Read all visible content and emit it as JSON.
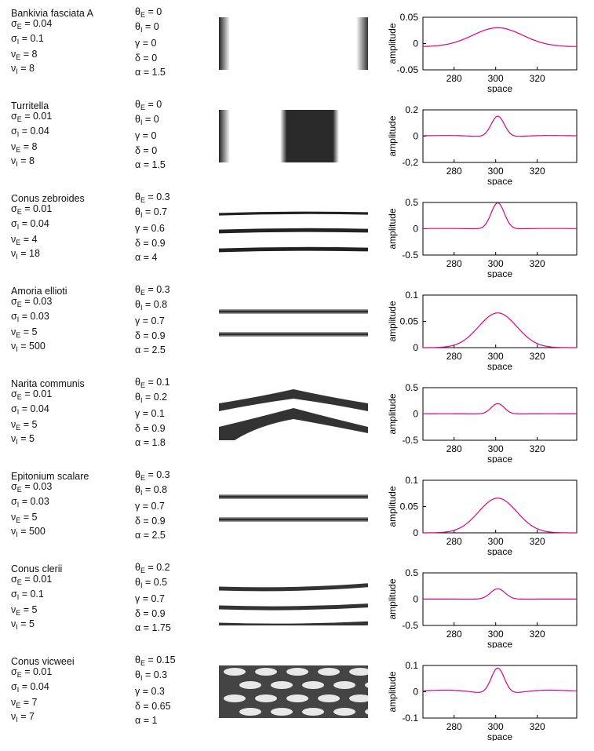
{
  "axes": {
    "xlabel": "space",
    "ylabel": "amplitude",
    "xticks": [
      "280",
      "300",
      "320"
    ]
  },
  "line_color": "#e0007a",
  "shells": [
    {
      "name": "Bankivia fasciata A",
      "sigma_e": "0.04",
      "sigma_i": "0.1",
      "nu_e": "8",
      "nu_i": "8",
      "theta_e": "0",
      "theta_i": "0",
      "gamma": "0",
      "delta": "0",
      "alpha": "1.5",
      "pattern": "bars_edges",
      "chart": {
        "yticks": [
          "0.05",
          "0",
          "-0.05"
        ],
        "ylim": [
          -0.05,
          0.05
        ],
        "peak": 0.036,
        "width": 17,
        "dip": 0.0,
        "base": -0.006
      }
    },
    {
      "name": "Turritella",
      "sigma_e": "0.01",
      "sigma_i": "0.04",
      "nu_e": "8",
      "nu_i": "8",
      "theta_e": "0",
      "theta_i": "0",
      "gamma": "0",
      "delta": "0",
      "alpha": "1.5",
      "pattern": "bars_center",
      "chart": {
        "yticks": [
          "0.2",
          "0",
          "-0.2"
        ],
        "ylim": [
          -0.2,
          0.2
        ],
        "peak": 0.16,
        "width": 4.5,
        "dip": 0.02,
        "base": 0
      }
    },
    {
      "name": "Conus zebroides",
      "sigma_e": "0.01",
      "sigma_i": "0.04",
      "nu_e": "4",
      "nu_i": "18",
      "theta_e": "0.3",
      "theta_i": "0.7",
      "gamma": "0.6",
      "delta": "0.9",
      "alpha": "4",
      "pattern": "lines3",
      "chart": {
        "yticks": [
          "0.5",
          "0",
          "-0.5"
        ],
        "ylim": [
          -0.5,
          0.5
        ],
        "peak": 0.5,
        "width": 4.5,
        "dip": 0.02,
        "base": 0
      }
    },
    {
      "name": "Amoria ellioti",
      "sigma_e": "0.03",
      "sigma_i": "0.03",
      "nu_e": "5",
      "nu_i": "500",
      "theta_e": "0.3",
      "theta_i": "0.8",
      "gamma": "0.7",
      "delta": "0.9",
      "alpha": "2.5",
      "pattern": "lines2",
      "chart": {
        "yticks": [
          "0.1",
          "0.05",
          "0"
        ],
        "ylim": [
          0,
          0.1
        ],
        "peak": 0.066,
        "width": 13,
        "dip": 0,
        "base": 0
      }
    },
    {
      "name": "Narita communis",
      "sigma_e": "0.01",
      "sigma_i": "0.04",
      "nu_e": "5",
      "nu_i": "5",
      "theta_e": "0.1",
      "theta_i": "0.2",
      "gamma": "0.1",
      "delta": "0.9",
      "alpha": "1.8",
      "pattern": "chevron",
      "chart": {
        "yticks": [
          "0.5",
          "0",
          "-0.5"
        ],
        "ylim": [
          -0.5,
          0.5
        ],
        "peak": 0.2,
        "width": 4.5,
        "dip": 0.01,
        "base": 0
      }
    },
    {
      "name": "Epitonium scalare",
      "sigma_e": "0.03",
      "sigma_i": "0.03",
      "nu_e": "5",
      "nu_i": "500",
      "theta_e": "0.3",
      "theta_i": "0.8",
      "gamma": "0.7",
      "delta": "0.9",
      "alpha": "2.5",
      "pattern": "lines2",
      "chart": {
        "yticks": [
          "0.1",
          "0.05",
          "0"
        ],
        "ylim": [
          0,
          0.1
        ],
        "peak": 0.066,
        "width": 13,
        "dip": 0,
        "base": 0
      }
    },
    {
      "name": "Conus clerii",
      "sigma_e": "0.01",
      "sigma_i": "0.1",
      "nu_e": "5",
      "nu_i": "5",
      "theta_e": "0.2",
      "theta_i": "0.5",
      "gamma": "0.7",
      "delta": "0.9",
      "alpha": "1.75",
      "pattern": "wavy",
      "chart": {
        "yticks": [
          "0.5",
          "0",
          "-0.5"
        ],
        "ylim": [
          -0.5,
          0.5
        ],
        "peak": 0.2,
        "width": 5,
        "dip": 0.005,
        "base": 0
      }
    },
    {
      "name": "Conus vicweei",
      "sigma_e": "0.01",
      "sigma_i": "0.04",
      "nu_e": "7",
      "nu_i": "7",
      "theta_e": "0.15",
      "theta_i": "0.3",
      "gamma": "0.3",
      "delta": "0.65",
      "alpha": "1",
      "pattern": "mesh",
      "chart": {
        "yticks": [
          "0.1",
          "0",
          "-0.1"
        ],
        "ylim": [
          -0.1,
          0.1
        ],
        "peak": 0.1,
        "width": 4.5,
        "dip": 0.025,
        "base": 0
      }
    }
  ]
}
